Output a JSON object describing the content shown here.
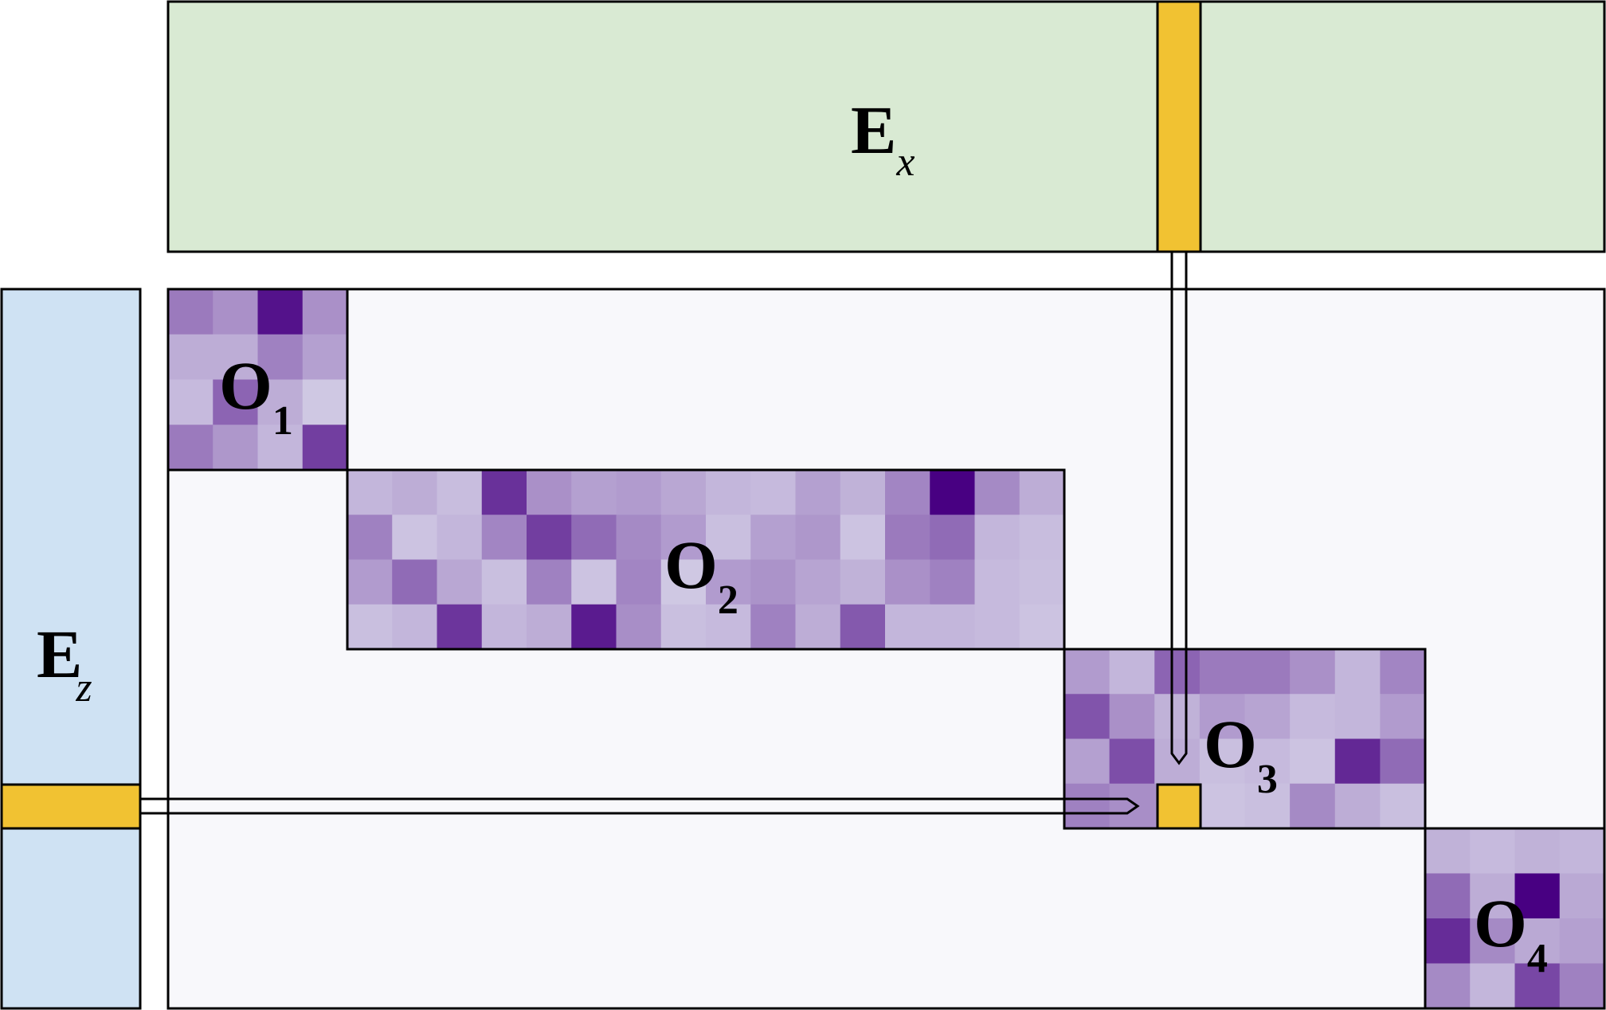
{
  "labels": {
    "ex": {
      "main": "E",
      "sub": "x"
    },
    "ez": {
      "main": "E",
      "sub": "z"
    },
    "o1": {
      "main": "O",
      "sub": "1"
    },
    "o2": {
      "main": "O",
      "sub": "2"
    },
    "o3": {
      "main": "O",
      "sub": "3"
    },
    "o4": {
      "main": "O",
      "sub": "4"
    }
  },
  "colors": {
    "ex_fill": "#d9ead3",
    "ez_fill": "#cfe2f3",
    "highlight": "#f1c232",
    "matrix_bg": "#f8f8fb",
    "stroke": "#000000"
  },
  "blocks": {
    "o1": {
      "rows": 4,
      "cols": 4,
      "shade": [
        [
          0.45,
          0.35,
          0.92,
          0.35
        ],
        [
          0.22,
          0.22,
          0.42,
          0.28
        ],
        [
          0.16,
          0.55,
          0.22,
          0.1
        ],
        [
          0.45,
          0.32,
          0.18,
          0.72
        ]
      ]
    },
    "o2": {
      "rows": 4,
      "cols": 16,
      "shade": [
        [
          0.18,
          0.22,
          0.15,
          0.78,
          0.35,
          0.28,
          0.3,
          0.25,
          0.18,
          0.16,
          0.28,
          0.2,
          0.4,
          1.0,
          0.38,
          0.22
        ],
        [
          0.42,
          0.12,
          0.18,
          0.4,
          0.72,
          0.52,
          0.38,
          0.3,
          0.14,
          0.28,
          0.32,
          0.12,
          0.45,
          0.52,
          0.18,
          0.15
        ],
        [
          0.3,
          0.52,
          0.25,
          0.14,
          0.42,
          0.12,
          0.4,
          0.1,
          0.3,
          0.34,
          0.26,
          0.2,
          0.35,
          0.42,
          0.16,
          0.14
        ],
        [
          0.14,
          0.18,
          0.76,
          0.18,
          0.22,
          0.88,
          0.36,
          0.14,
          0.16,
          0.42,
          0.22,
          0.6,
          0.18,
          0.18,
          0.16,
          0.12
        ]
      ]
    },
    "o3": {
      "rows": 4,
      "cols": 8,
      "shade": [
        [
          0.3,
          0.18,
          0.55,
          0.45,
          0.45,
          0.35,
          0.18,
          0.4
        ],
        [
          0.62,
          0.35,
          0.2,
          0.3,
          0.26,
          0.16,
          0.18,
          0.3
        ],
        [
          0.28,
          0.65,
          0.22,
          0.14,
          0.16,
          0.12,
          0.82,
          0.52
        ],
        [
          0.42,
          0.36,
          0.35,
          0.12,
          0.14,
          0.38,
          0.22,
          0.14
        ]
      ]
    },
    "o4": {
      "rows": 4,
      "cols": 4,
      "shade": [
        [
          0.2,
          0.16,
          0.2,
          0.18
        ],
        [
          0.52,
          0.22,
          1.0,
          0.24
        ],
        [
          0.8,
          0.38,
          0.24,
          0.28
        ],
        [
          0.38,
          0.18,
          0.68,
          0.42
        ]
      ]
    }
  }
}
